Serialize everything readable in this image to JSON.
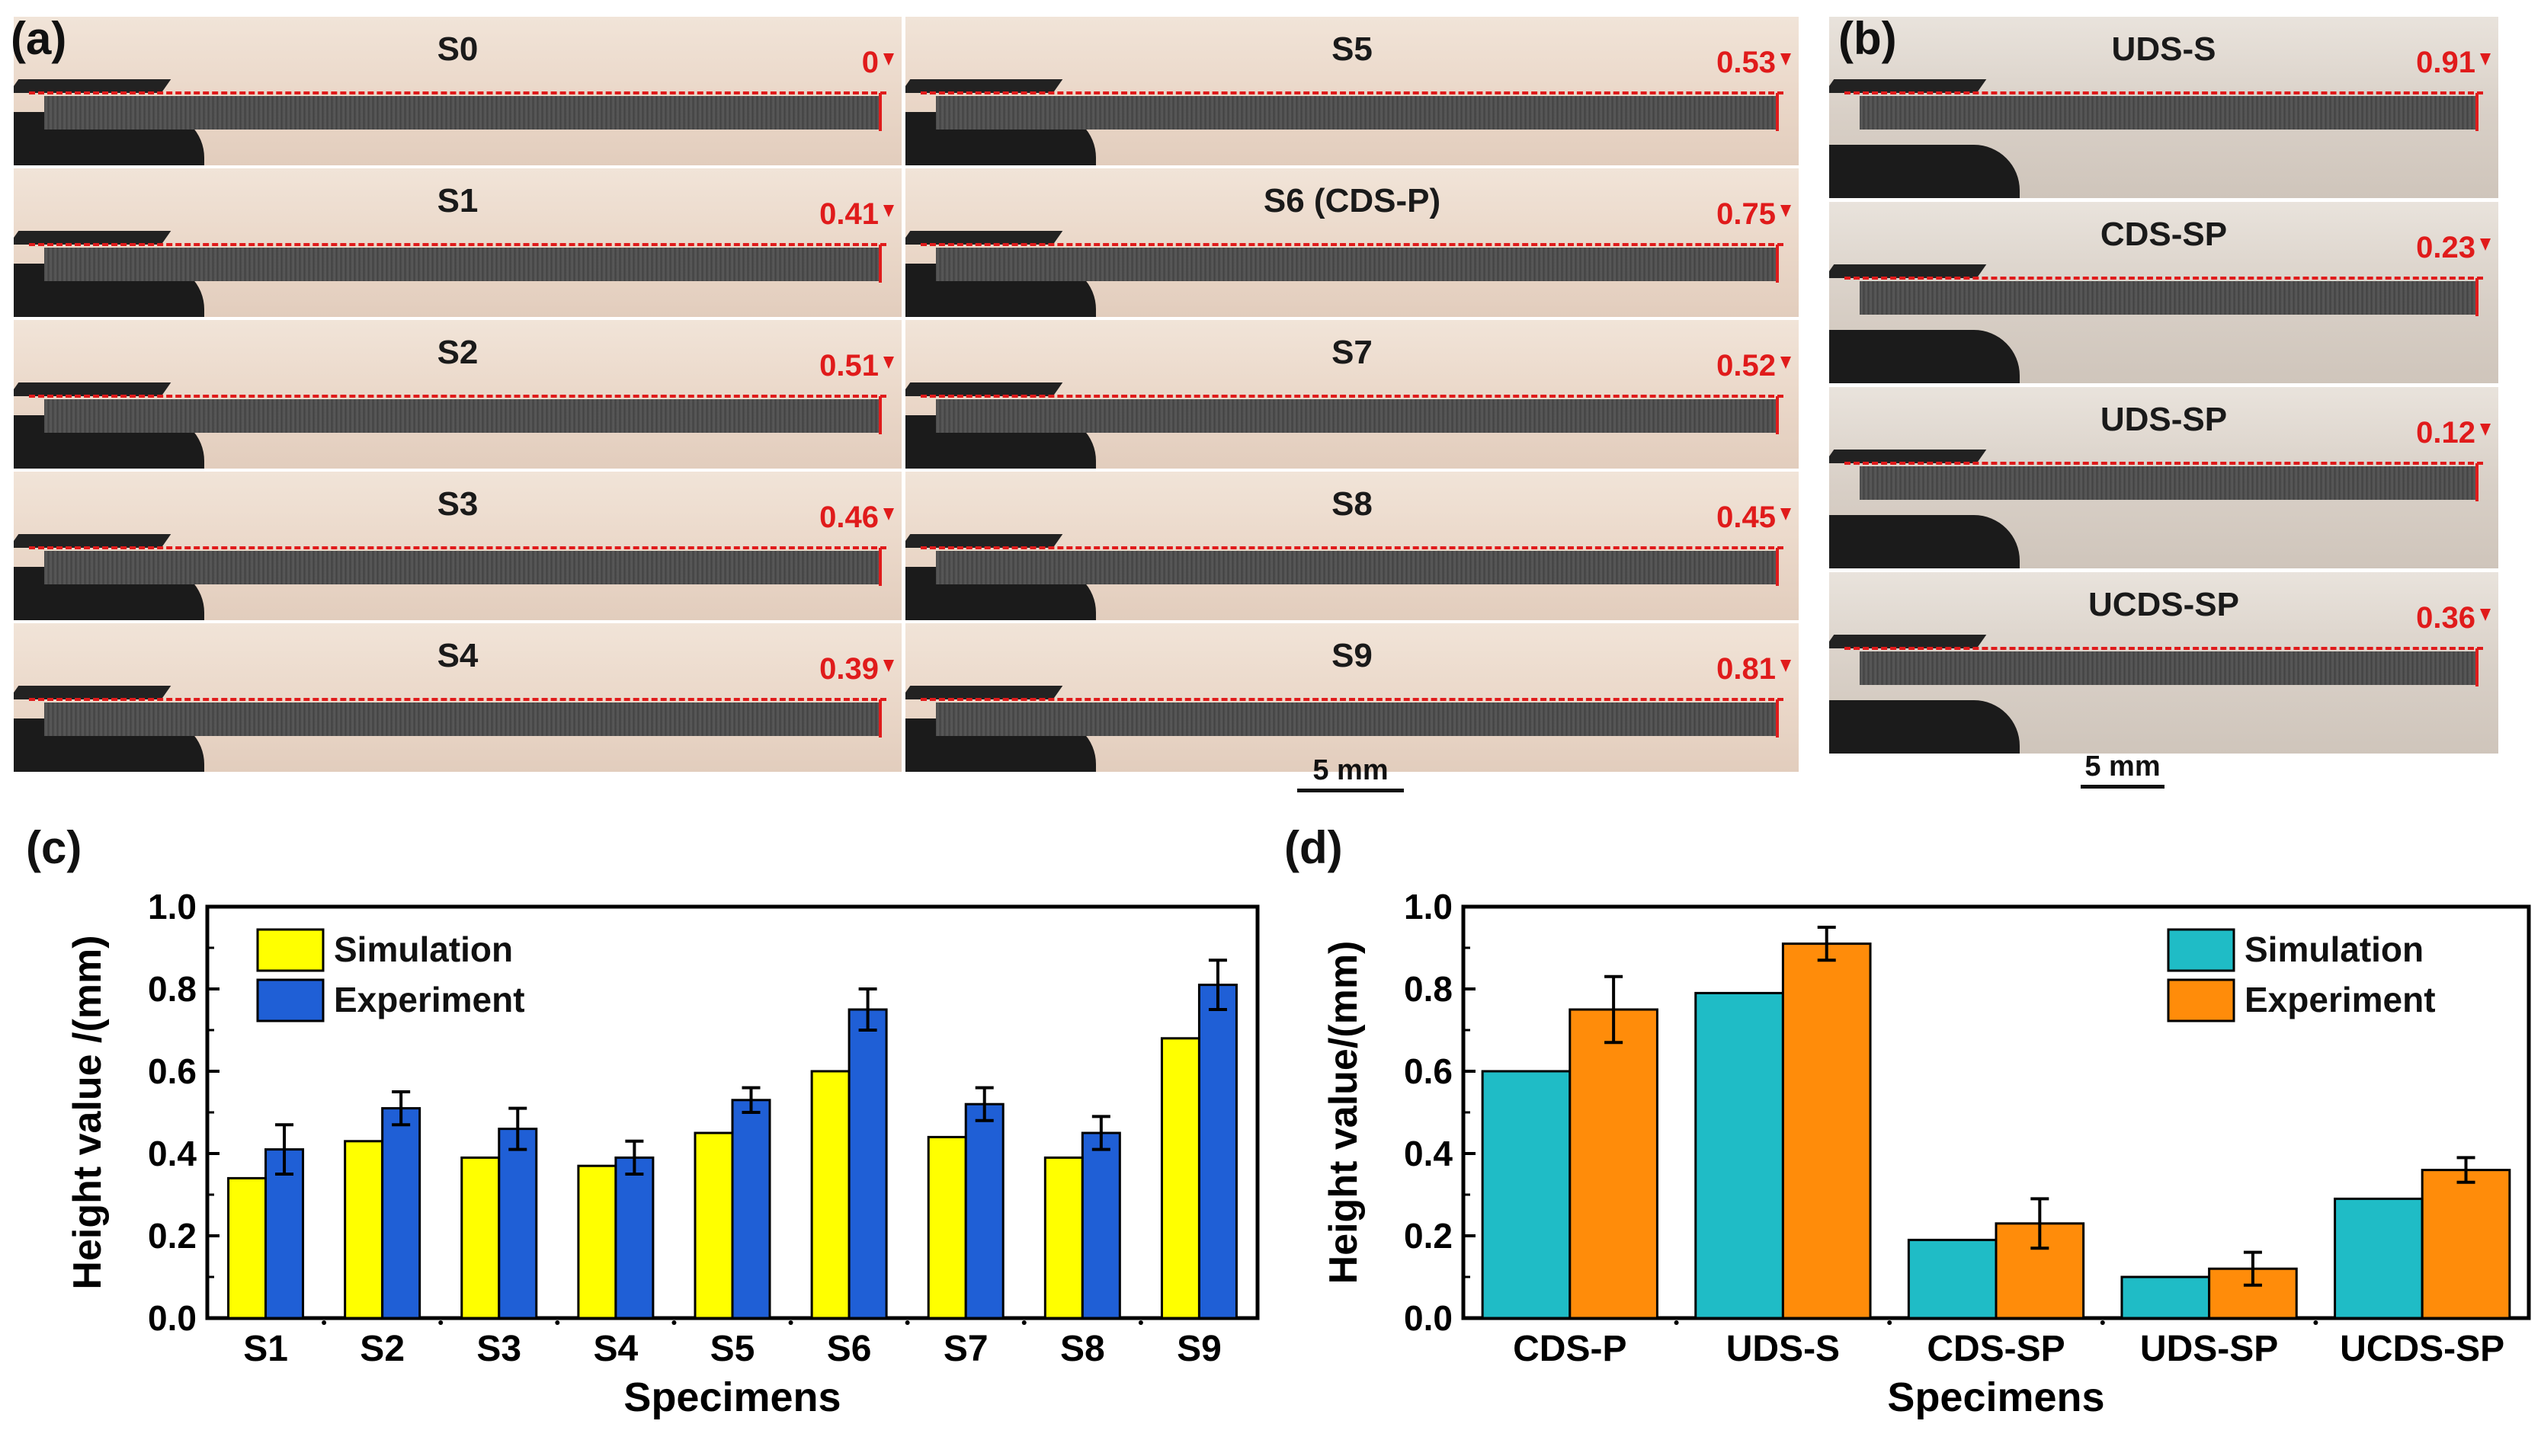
{
  "panels": {
    "a": {
      "letter": "(a)",
      "specimens": [
        {
          "label": "S0",
          "value": "0"
        },
        {
          "label": "S1",
          "value": "0.41"
        },
        {
          "label": "S2",
          "value": "0.51"
        },
        {
          "label": "S3",
          "value": "0.46"
        },
        {
          "label": "S4",
          "value": "0.39"
        },
        {
          "label": "S5",
          "value": "0.53"
        },
        {
          "label": "S6 (CDS-P)",
          "value": "0.75"
        },
        {
          "label": "S7",
          "value": "0.52"
        },
        {
          "label": "S8",
          "value": "0.45"
        },
        {
          "label": "S9",
          "value": "0.81"
        }
      ],
      "scale_bar": "5 mm"
    },
    "b": {
      "letter": "(b)",
      "specimens": [
        {
          "label": "UDS-S",
          "value": "0.91"
        },
        {
          "label": "CDS-SP",
          "value": "0.23"
        },
        {
          "label": "UDS-SP",
          "value": "0.12"
        },
        {
          "label": "UCDS-SP",
          "value": "0.36"
        }
      ],
      "scale_bar": "5 mm"
    },
    "c": {
      "letter": "(c)"
    },
    "d": {
      "letter": "(d)"
    }
  },
  "chart_data": [
    {
      "id": "c",
      "type": "bar",
      "title": "",
      "xlabel": "Specimens",
      "ylabel": "Height value /(mm)",
      "ylim": [
        0.0,
        1.0
      ],
      "yticks": [
        "0.0",
        "0.2",
        "0.4",
        "0.6",
        "0.8",
        "1.0"
      ],
      "categories": [
        "S1",
        "S2",
        "S3",
        "S4",
        "S5",
        "S6",
        "S7",
        "S8",
        "S9"
      ],
      "series": [
        {
          "name": "Simulation",
          "color": "#ffff00",
          "values": [
            0.34,
            0.43,
            0.39,
            0.37,
            0.45,
            0.6,
            0.44,
            0.39,
            0.68
          ]
        },
        {
          "name": "Experiment",
          "color": "#1f5fd6",
          "values": [
            0.41,
            0.51,
            0.46,
            0.39,
            0.53,
            0.75,
            0.52,
            0.45,
            0.81
          ],
          "errors": [
            0.06,
            0.04,
            0.05,
            0.04,
            0.03,
            0.05,
            0.04,
            0.04,
            0.06
          ]
        }
      ],
      "legend": "top-left"
    },
    {
      "id": "d",
      "type": "bar",
      "title": "",
      "xlabel": "Specimens",
      "ylabel": "Height value/(mm)",
      "ylim": [
        0.0,
        1.0
      ],
      "yticks": [
        "0.0",
        "0.2",
        "0.4",
        "0.6",
        "0.8",
        "1.0"
      ],
      "categories": [
        "CDS-P",
        "UDS-S",
        "CDS-SP",
        "UDS-SP",
        "UCDS-SP"
      ],
      "series": [
        {
          "name": "Simulation",
          "color": "#1fbcc6",
          "values": [
            0.6,
            0.79,
            0.19,
            0.1,
            0.29
          ]
        },
        {
          "name": "Experiment",
          "color": "#ff8c0a",
          "values": [
            0.75,
            0.91,
            0.23,
            0.12,
            0.36
          ],
          "errors": [
            0.08,
            0.04,
            0.06,
            0.04,
            0.03
          ]
        }
      ],
      "legend": "top-right"
    }
  ]
}
